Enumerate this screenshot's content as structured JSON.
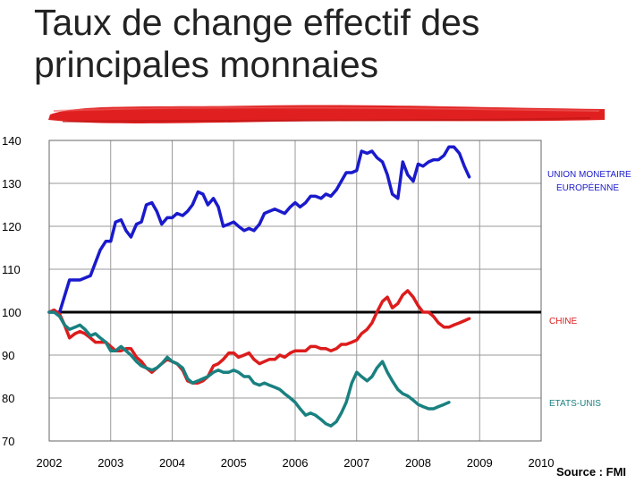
{
  "title": "Taux de change effectif des principales monnaies",
  "source": "Source : FMI",
  "colors": {
    "euro": "#1a1acc",
    "china": "#dd1c1c",
    "usa": "#1a8080",
    "baseline": "#000000",
    "grid": "#999999",
    "accent_brush": "#e02020"
  },
  "chart_data": {
    "type": "line",
    "title": "",
    "xlabel": "",
    "ylabel": "",
    "xlim": [
      2002,
      2010
    ],
    "ylim": [
      70,
      140
    ],
    "x_ticks": [
      2002,
      2003,
      2004,
      2005,
      2006,
      2007,
      2008,
      2009,
      2010
    ],
    "x_tick_labels": [
      "2002",
      "2003",
      "2004",
      "2005",
      "2006",
      "2007",
      "2008",
      "2009",
      "2010"
    ],
    "y_ticks": [
      70,
      80,
      90,
      100,
      110,
      120,
      130,
      140
    ],
    "y_tick_labels": [
      "70",
      "80",
      "90",
      "100",
      "110",
      "120",
      "130",
      "140"
    ],
    "grid": true,
    "reference_line": 100,
    "series": [
      {
        "name": "UNION MONETAIRE EUROPÉENNE",
        "color": "#1a1acc",
        "points": [
          [
            2002.0,
            100
          ],
          [
            2002.17,
            100
          ],
          [
            2002.33,
            107.5
          ],
          [
            2002.5,
            107.5
          ],
          [
            2002.67,
            108.5
          ],
          [
            2002.83,
            114.5
          ],
          [
            2002.92,
            116.5
          ],
          [
            2003.0,
            116.5
          ],
          [
            2003.08,
            121
          ],
          [
            2003.17,
            121.5
          ],
          [
            2003.25,
            119
          ],
          [
            2003.33,
            117.5
          ],
          [
            2003.42,
            120.5
          ],
          [
            2003.5,
            121
          ],
          [
            2003.58,
            125
          ],
          [
            2003.67,
            125.5
          ],
          [
            2003.75,
            123.5
          ],
          [
            2003.83,
            120.5
          ],
          [
            2003.92,
            122
          ],
          [
            2004.0,
            122
          ],
          [
            2004.08,
            123
          ],
          [
            2004.17,
            122.5
          ],
          [
            2004.25,
            123.5
          ],
          [
            2004.33,
            125
          ],
          [
            2004.42,
            128
          ],
          [
            2004.5,
            127.5
          ],
          [
            2004.58,
            125
          ],
          [
            2004.67,
            126.5
          ],
          [
            2004.75,
            124.5
          ],
          [
            2004.83,
            120
          ],
          [
            2004.92,
            120.5
          ],
          [
            2005.0,
            121
          ],
          [
            2005.08,
            120
          ],
          [
            2005.17,
            119
          ],
          [
            2005.25,
            119.5
          ],
          [
            2005.33,
            119
          ],
          [
            2005.42,
            120.5
          ],
          [
            2005.5,
            123
          ],
          [
            2005.58,
            123.5
          ],
          [
            2005.67,
            124
          ],
          [
            2005.75,
            123.5
          ],
          [
            2005.83,
            123
          ],
          [
            2005.92,
            124.5
          ],
          [
            2006.0,
            125.5
          ],
          [
            2006.08,
            124.5
          ],
          [
            2006.17,
            125.5
          ],
          [
            2006.25,
            127
          ],
          [
            2006.33,
            127
          ],
          [
            2006.42,
            126.5
          ],
          [
            2006.5,
            127.5
          ],
          [
            2006.58,
            127
          ],
          [
            2006.67,
            128.5
          ],
          [
            2006.75,
            130.5
          ],
          [
            2006.83,
            132.5
          ],
          [
            2006.92,
            132.5
          ],
          [
            2007.0,
            133
          ],
          [
            2007.08,
            137.5
          ],
          [
            2007.17,
            137
          ],
          [
            2007.25,
            137.5
          ],
          [
            2007.33,
            136
          ],
          [
            2007.42,
            135
          ],
          [
            2007.5,
            132
          ],
          [
            2007.58,
            127.5
          ],
          [
            2007.67,
            126.5
          ],
          [
            2007.75,
            135
          ],
          [
            2007.83,
            132
          ],
          [
            2007.92,
            130.5
          ],
          [
            2008.0,
            134.5
          ],
          [
            2008.08,
            134
          ],
          [
            2008.17,
            135
          ],
          [
            2008.25,
            135.5
          ],
          [
            2008.33,
            135.5
          ],
          [
            2008.42,
            136.5
          ],
          [
            2008.5,
            138.5
          ],
          [
            2008.58,
            138.5
          ],
          [
            2008.67,
            137
          ],
          [
            2008.75,
            134
          ],
          [
            2008.83,
            131.5
          ]
        ]
      },
      {
        "name": "CHINE",
        "color": "#dd1c1c",
        "points": [
          [
            2002.0,
            100
          ],
          [
            2002.08,
            100.5
          ],
          [
            2002.17,
            99.5
          ],
          [
            2002.25,
            97
          ],
          [
            2002.33,
            94
          ],
          [
            2002.42,
            95
          ],
          [
            2002.5,
            95.5
          ],
          [
            2002.58,
            95
          ],
          [
            2002.67,
            94
          ],
          [
            2002.75,
            93
          ],
          [
            2002.83,
            93
          ],
          [
            2002.92,
            93
          ],
          [
            2003.0,
            92
          ],
          [
            2003.08,
            91
          ],
          [
            2003.17,
            91
          ],
          [
            2003.25,
            91.5
          ],
          [
            2003.33,
            91.5
          ],
          [
            2003.42,
            89.5
          ],
          [
            2003.5,
            88.5
          ],
          [
            2003.58,
            87
          ],
          [
            2003.67,
            86
          ],
          [
            2003.75,
            87
          ],
          [
            2003.83,
            88
          ],
          [
            2003.92,
            89
          ],
          [
            2004.0,
            88.5
          ],
          [
            2004.08,
            88
          ],
          [
            2004.17,
            86.5
          ],
          [
            2004.25,
            84
          ],
          [
            2004.33,
            83.5
          ],
          [
            2004.42,
            83.5
          ],
          [
            2004.5,
            84
          ],
          [
            2004.58,
            85
          ],
          [
            2004.67,
            87.5
          ],
          [
            2004.75,
            88
          ],
          [
            2004.83,
            89
          ],
          [
            2004.92,
            90.5
          ],
          [
            2005.0,
            90.5
          ],
          [
            2005.08,
            89.5
          ],
          [
            2005.17,
            90
          ],
          [
            2005.25,
            90.5
          ],
          [
            2005.33,
            89
          ],
          [
            2005.42,
            88
          ],
          [
            2005.5,
            88.5
          ],
          [
            2005.58,
            89
          ],
          [
            2005.67,
            89
          ],
          [
            2005.75,
            90
          ],
          [
            2005.83,
            89.5
          ],
          [
            2005.92,
            90.5
          ],
          [
            2006.0,
            91
          ],
          [
            2006.08,
            91
          ],
          [
            2006.17,
            91
          ],
          [
            2006.25,
            92
          ],
          [
            2006.33,
            92
          ],
          [
            2006.42,
            91.5
          ],
          [
            2006.5,
            91.5
          ],
          [
            2006.58,
            91
          ],
          [
            2006.67,
            91.5
          ],
          [
            2006.75,
            92.5
          ],
          [
            2006.83,
            92.5
          ],
          [
            2006.92,
            93
          ],
          [
            2007.0,
            93.5
          ],
          [
            2007.08,
            95
          ],
          [
            2007.17,
            96
          ],
          [
            2007.25,
            97.5
          ],
          [
            2007.33,
            100
          ],
          [
            2007.42,
            102.5
          ],
          [
            2007.5,
            103.5
          ],
          [
            2007.58,
            101
          ],
          [
            2007.67,
            102
          ],
          [
            2007.75,
            104
          ],
          [
            2007.83,
            105
          ],
          [
            2007.92,
            103.5
          ],
          [
            2008.0,
            101.5
          ],
          [
            2008.08,
            100
          ],
          [
            2008.17,
            100
          ],
          [
            2008.25,
            99
          ],
          [
            2008.33,
            97.5
          ],
          [
            2008.42,
            96.5
          ],
          [
            2008.5,
            96.5
          ],
          [
            2008.58,
            97
          ],
          [
            2008.67,
            97.5
          ],
          [
            2008.75,
            98
          ],
          [
            2008.83,
            98.5
          ]
        ]
      },
      {
        "name": "ETATS-UNIS",
        "color": "#1a8080",
        "points": [
          [
            2002.0,
            100
          ],
          [
            2002.08,
            100
          ],
          [
            2002.17,
            99
          ],
          [
            2002.25,
            97
          ],
          [
            2002.33,
            96
          ],
          [
            2002.42,
            96.5
          ],
          [
            2002.5,
            97
          ],
          [
            2002.58,
            96
          ],
          [
            2002.67,
            94.5
          ],
          [
            2002.75,
            95
          ],
          [
            2002.83,
            94
          ],
          [
            2002.92,
            93
          ],
          [
            2003.0,
            91
          ],
          [
            2003.08,
            91
          ],
          [
            2003.17,
            92
          ],
          [
            2003.25,
            91
          ],
          [
            2003.33,
            90
          ],
          [
            2003.42,
            88.5
          ],
          [
            2003.5,
            87.5
          ],
          [
            2003.58,
            87
          ],
          [
            2003.67,
            86.5
          ],
          [
            2003.75,
            87
          ],
          [
            2003.83,
            88
          ],
          [
            2003.92,
            89.5
          ],
          [
            2004.0,
            88.5
          ],
          [
            2004.08,
            88
          ],
          [
            2004.17,
            87
          ],
          [
            2004.25,
            84.5
          ],
          [
            2004.33,
            83.5
          ],
          [
            2004.42,
            84
          ],
          [
            2004.5,
            84.5
          ],
          [
            2004.58,
            85
          ],
          [
            2004.67,
            86
          ],
          [
            2004.75,
            86.5
          ],
          [
            2004.83,
            86
          ],
          [
            2004.92,
            86
          ],
          [
            2005.0,
            86.5
          ],
          [
            2005.08,
            86
          ],
          [
            2005.17,
            85
          ],
          [
            2005.25,
            85
          ],
          [
            2005.33,
            83.5
          ],
          [
            2005.42,
            83
          ],
          [
            2005.5,
            83.5
          ],
          [
            2005.58,
            83
          ],
          [
            2005.67,
            82.5
          ],
          [
            2005.75,
            82
          ],
          [
            2005.83,
            81
          ],
          [
            2005.92,
            80
          ],
          [
            2006.0,
            79
          ],
          [
            2006.08,
            77.5
          ],
          [
            2006.17,
            76
          ],
          [
            2006.25,
            76.5
          ],
          [
            2006.33,
            76
          ],
          [
            2006.42,
            75
          ],
          [
            2006.5,
            74
          ],
          [
            2006.58,
            73.5
          ],
          [
            2006.67,
            74.5
          ],
          [
            2006.75,
            76.5
          ],
          [
            2006.83,
            79
          ],
          [
            2006.92,
            83.5
          ],
          [
            2007.0,
            86
          ],
          [
            2007.08,
            85
          ],
          [
            2007.17,
            84
          ],
          [
            2007.25,
            85
          ],
          [
            2007.33,
            87
          ],
          [
            2007.42,
            88.5
          ],
          [
            2007.5,
            86
          ],
          [
            2007.58,
            84
          ],
          [
            2007.67,
            82
          ],
          [
            2007.75,
            81
          ],
          [
            2007.83,
            80.5
          ],
          [
            2007.92,
            79.5
          ],
          [
            2008.0,
            78.5
          ],
          [
            2008.08,
            78
          ],
          [
            2008.17,
            77.5
          ],
          [
            2008.25,
            77.5
          ],
          [
            2008.33,
            78
          ],
          [
            2008.42,
            78.5
          ],
          [
            2008.5,
            79
          ]
        ]
      }
    ],
    "labels": {
      "euro_line1": "UNION MONETAIRE",
      "euro_line2": "EUROPÉENNE",
      "china": "CHINE",
      "usa": "ETATS-UNIS"
    }
  }
}
